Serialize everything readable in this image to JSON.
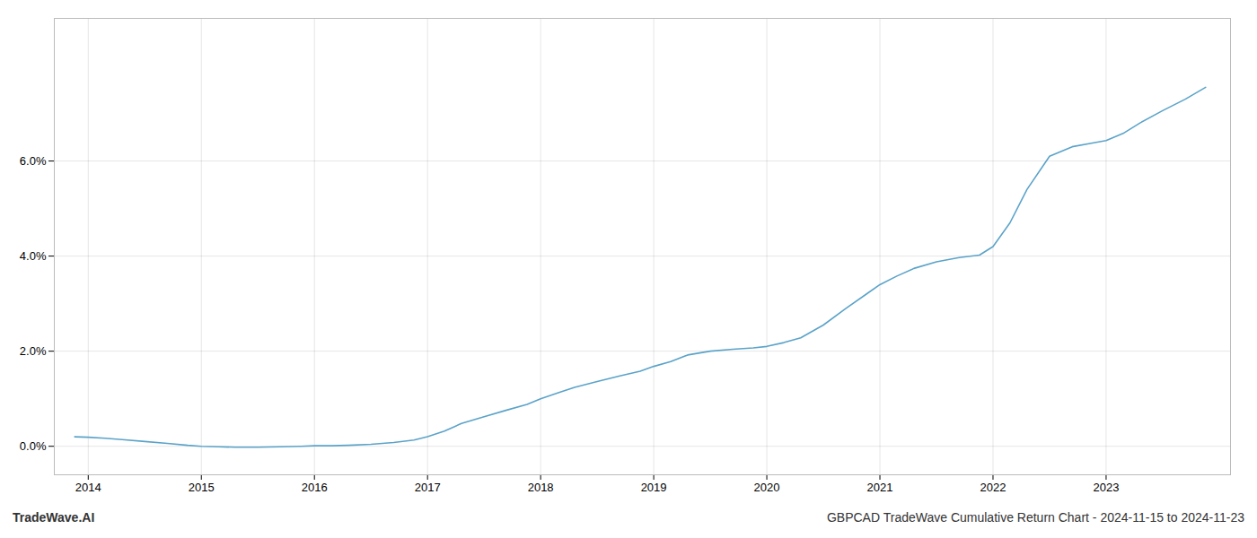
{
  "chart_data": {
    "type": "line",
    "title": "GBPCAD TradeWave Cumulative Return Chart - 2024-11-15 to 2024-11-23",
    "annotations": [
      "TradeWave.AI"
    ],
    "color": "#5ba3c9",
    "grid": true,
    "x": [
      2013.88,
      2014.0,
      2014.15,
      2014.3,
      2014.5,
      2014.7,
      2014.88,
      2015.0,
      2015.15,
      2015.3,
      2015.5,
      2015.7,
      2015.88,
      2016.0,
      2016.15,
      2016.3,
      2016.5,
      2016.7,
      2016.88,
      2017.0,
      2017.15,
      2017.3,
      2017.5,
      2017.7,
      2017.88,
      2018.0,
      2018.15,
      2018.3,
      2018.5,
      2018.7,
      2018.88,
      2019.0,
      2019.15,
      2019.3,
      2019.5,
      2019.7,
      2019.88,
      2020.0,
      2020.15,
      2020.3,
      2020.5,
      2020.7,
      2020.88,
      2021.0,
      2021.15,
      2021.3,
      2021.5,
      2021.7,
      2021.88,
      2022.0,
      2022.15,
      2022.3,
      2022.5,
      2022.7,
      2022.88,
      2023.0,
      2023.15,
      2023.3,
      2023.5,
      2023.7,
      2023.88
    ],
    "values": [
      0.002,
      0.0019,
      0.0017,
      0.0014,
      0.001,
      0.0006,
      0.0002,
      0.0,
      -0.0001,
      -0.0002,
      -0.0002,
      -0.0001,
      0.0,
      0.0001,
      0.0001,
      0.0002,
      0.0004,
      0.0008,
      0.0013,
      0.002,
      0.0032,
      0.0048,
      0.0062,
      0.0076,
      0.0088,
      0.01,
      0.0112,
      0.0124,
      0.0136,
      0.0148,
      0.0158,
      0.0168,
      0.0178,
      0.0192,
      0.02,
      0.0204,
      0.0207,
      0.021,
      0.0218,
      0.0228,
      0.0255,
      0.029,
      0.032,
      0.034,
      0.0358,
      0.0374,
      0.0388,
      0.0397,
      0.0402,
      0.042,
      0.047,
      0.054,
      0.061,
      0.063,
      0.0638,
      0.0643,
      0.0658,
      0.068,
      0.0706,
      0.073,
      0.0755
    ],
    "xlim": [
      2013.7,
      2024.1
    ],
    "xticks": [
      2014,
      2015,
      2016,
      2017,
      2018,
      2019,
      2020,
      2021,
      2022,
      2023
    ],
    "ylim": [
      -0.006,
      0.09
    ],
    "yticks": [
      {
        "value": 0.0,
        "label": "0.0%"
      },
      {
        "value": 0.02,
        "label": "2.0%"
      },
      {
        "value": 0.04,
        "label": "4.0%"
      },
      {
        "value": 0.06,
        "label": "6.0%"
      }
    ]
  }
}
